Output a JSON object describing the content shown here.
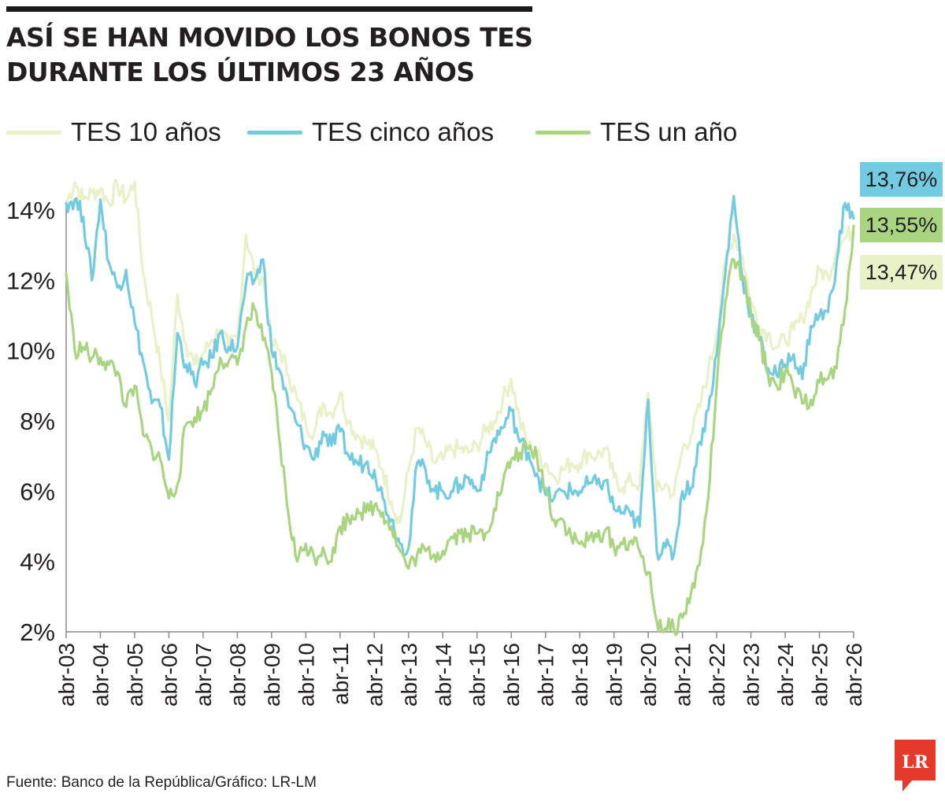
{
  "header": {
    "title_line1": "ASÍ SE HAN MOVIDO LOS BONOS TES",
    "title_line2": "DURANTE LOS ÚLTIMOS 23 AÑOS"
  },
  "colors": {
    "tes10": "#e8f1c8",
    "tes5": "#72cbe0",
    "tes1": "#a9d580",
    "axis": "#8a8a8a",
    "text": "#231f20",
    "logo": "#e53a2b"
  },
  "badges": {
    "tes5": "13,76%",
    "tes1": "13,55%",
    "tes10": "13,47%"
  },
  "footer": {
    "source": "Fuente: Banco de la República/Gráfico: LR-LM",
    "logo_text": "LR"
  },
  "chart_data": {
    "type": "line",
    "title": "ASÍ SE HAN MOVIDO LOS BONOS TES DURANTE LOS ÚLTIMOS 23 AÑOS",
    "xlabel": "",
    "ylabel": "",
    "xlim": [
      2003.25,
      2026.25
    ],
    "ylim": [
      2,
      15.5
    ],
    "y_ticks": [
      2,
      4,
      6,
      8,
      10,
      12,
      14
    ],
    "y_tick_labels": [
      "2%",
      "4%",
      "6%",
      "8%",
      "10%",
      "12%",
      "14%"
    ],
    "x_ticks": [
      2003.25,
      2004.25,
      2005.25,
      2006.25,
      2007.25,
      2008.25,
      2009.25,
      2010.25,
      2011.25,
      2012.25,
      2013.25,
      2014.25,
      2015.25,
      2016.25,
      2017.25,
      2018.25,
      2019.25,
      2020.25,
      2021.25,
      2022.25,
      2023.25,
      2024.25,
      2025.25,
      2026.25
    ],
    "x_tick_labels": [
      "abr-03",
      "abr-04",
      "abr-05",
      "abr-06",
      "abr-07",
      "abr-08",
      "abr-09",
      "abr-10",
      "abr-11",
      "abr-12",
      "abr-13",
      "abr-14",
      "abr-15",
      "abr-16",
      "abr-17",
      "abr-18",
      "abr-19",
      "abr-20",
      "abr-21",
      "abr-22",
      "abr-23",
      "abr-24",
      "abr-25",
      "abr-26"
    ],
    "grid": false,
    "legend_position": "top",
    "series": [
      {
        "key": "tes10",
        "name": "TES 10 años",
        "points": [
          [
            2003.25,
            14.2
          ],
          [
            2003.5,
            14.8
          ],
          [
            2003.75,
            14.3
          ],
          [
            2004.0,
            14.5
          ],
          [
            2004.25,
            14.6
          ],
          [
            2004.5,
            14.2
          ],
          [
            2004.75,
            14.7
          ],
          [
            2005.0,
            14.3
          ],
          [
            2005.25,
            14.8
          ],
          [
            2005.5,
            12.2
          ],
          [
            2005.75,
            11.0
          ],
          [
            2006.0,
            9.6
          ],
          [
            2006.25,
            8.0
          ],
          [
            2006.5,
            11.6
          ],
          [
            2006.75,
            10.2
          ],
          [
            2007.0,
            9.6
          ],
          [
            2007.25,
            9.9
          ],
          [
            2007.5,
            10.3
          ],
          [
            2007.75,
            10.6
          ],
          [
            2008.0,
            10.1
          ],
          [
            2008.25,
            10.4
          ],
          [
            2008.5,
            13.3
          ],
          [
            2008.75,
            12.2
          ],
          [
            2009.0,
            12.1
          ],
          [
            2009.25,
            10.2
          ],
          [
            2009.5,
            10.0
          ],
          [
            2009.75,
            9.3
          ],
          [
            2010.0,
            8.6
          ],
          [
            2010.25,
            7.9
          ],
          [
            2010.5,
            7.7
          ],
          [
            2010.75,
            8.5
          ],
          [
            2011.0,
            8.2
          ],
          [
            2011.25,
            8.8
          ],
          [
            2011.5,
            8.0
          ],
          [
            2011.75,
            7.6
          ],
          [
            2012.0,
            7.4
          ],
          [
            2012.25,
            7.2
          ],
          [
            2012.5,
            6.6
          ],
          [
            2012.75,
            5.7
          ],
          [
            2013.0,
            5.1
          ],
          [
            2013.25,
            6.6
          ],
          [
            2013.5,
            7.8
          ],
          [
            2013.75,
            7.4
          ],
          [
            2014.0,
            6.8
          ],
          [
            2014.25,
            6.9
          ],
          [
            2014.5,
            7.2
          ],
          [
            2014.75,
            7.2
          ],
          [
            2015.0,
            7.1
          ],
          [
            2015.25,
            7.3
          ],
          [
            2015.5,
            7.7
          ],
          [
            2015.75,
            8.0
          ],
          [
            2016.0,
            8.6
          ],
          [
            2016.25,
            9.2
          ],
          [
            2016.5,
            8.0
          ],
          [
            2016.75,
            7.3
          ],
          [
            2017.0,
            7.0
          ],
          [
            2017.25,
            6.8
          ],
          [
            2017.5,
            6.4
          ],
          [
            2017.75,
            6.6
          ],
          [
            2018.0,
            6.8
          ],
          [
            2018.25,
            6.8
          ],
          [
            2018.5,
            7.1
          ],
          [
            2018.75,
            7.0
          ],
          [
            2019.0,
            7.2
          ],
          [
            2019.25,
            6.4
          ],
          [
            2019.5,
            6.1
          ],
          [
            2019.75,
            6.3
          ],
          [
            2020.0,
            6.2
          ],
          [
            2020.25,
            8.8
          ],
          [
            2020.5,
            6.0
          ],
          [
            2020.75,
            6.2
          ],
          [
            2021.0,
            5.9
          ],
          [
            2021.25,
            7.2
          ],
          [
            2021.5,
            7.6
          ],
          [
            2021.75,
            8.4
          ],
          [
            2022.0,
            9.4
          ],
          [
            2022.25,
            10.5
          ],
          [
            2022.5,
            12.5
          ],
          [
            2022.75,
            13.3
          ],
          [
            2023.0,
            12.7
          ],
          [
            2023.25,
            11.4
          ],
          [
            2023.5,
            10.7
          ],
          [
            2023.75,
            10.5
          ],
          [
            2024.0,
            10.1
          ],
          [
            2024.25,
            10.3
          ],
          [
            2024.5,
            10.6
          ],
          [
            2024.75,
            10.9
          ],
          [
            2025.0,
            11.6
          ],
          [
            2025.25,
            12.3
          ],
          [
            2025.5,
            12.1
          ],
          [
            2025.75,
            12.9
          ],
          [
            2026.0,
            13.2
          ],
          [
            2026.25,
            13.47
          ]
        ]
      },
      {
        "key": "tes5",
        "name": "TES cinco años",
        "points": [
          [
            2003.25,
            14.2
          ],
          [
            2003.5,
            14.3
          ],
          [
            2003.75,
            13.8
          ],
          [
            2004.0,
            12.0
          ],
          [
            2004.25,
            14.3
          ],
          [
            2004.5,
            12.5
          ],
          [
            2004.75,
            11.8
          ],
          [
            2005.0,
            12.3
          ],
          [
            2005.25,
            10.8
          ],
          [
            2005.5,
            9.7
          ],
          [
            2005.75,
            8.5
          ],
          [
            2006.0,
            8.4
          ],
          [
            2006.25,
            6.9
          ],
          [
            2006.5,
            10.5
          ],
          [
            2006.75,
            9.6
          ],
          [
            2007.0,
            9.1
          ],
          [
            2007.25,
            9.6
          ],
          [
            2007.5,
            9.8
          ],
          [
            2007.75,
            10.5
          ],
          [
            2008.0,
            10.1
          ],
          [
            2008.25,
            10.1
          ],
          [
            2008.5,
            11.9
          ],
          [
            2008.75,
            12.0
          ],
          [
            2009.0,
            12.6
          ],
          [
            2009.25,
            10.0
          ],
          [
            2009.5,
            9.4
          ],
          [
            2009.75,
            8.4
          ],
          [
            2010.0,
            7.9
          ],
          [
            2010.25,
            7.3
          ],
          [
            2010.5,
            6.9
          ],
          [
            2010.75,
            7.7
          ],
          [
            2011.0,
            7.3
          ],
          [
            2011.25,
            7.7
          ],
          [
            2011.5,
            7.0
          ],
          [
            2011.75,
            6.8
          ],
          [
            2012.0,
            6.8
          ],
          [
            2012.25,
            6.6
          ],
          [
            2012.5,
            5.8
          ],
          [
            2012.75,
            5.2
          ],
          [
            2013.0,
            4.5
          ],
          [
            2013.25,
            4.4
          ],
          [
            2013.5,
            6.8
          ],
          [
            2013.75,
            6.6
          ],
          [
            2014.0,
            6.0
          ],
          [
            2014.25,
            6.0
          ],
          [
            2014.5,
            6.0
          ],
          [
            2014.75,
            6.2
          ],
          [
            2015.0,
            6.4
          ],
          [
            2015.25,
            6.0
          ],
          [
            2015.5,
            6.7
          ],
          [
            2015.75,
            7.5
          ],
          [
            2016.0,
            7.8
          ],
          [
            2016.25,
            8.3
          ],
          [
            2016.5,
            7.4
          ],
          [
            2016.75,
            7.1
          ],
          [
            2017.0,
            6.5
          ],
          [
            2017.25,
            5.9
          ],
          [
            2017.5,
            5.8
          ],
          [
            2017.75,
            6.0
          ],
          [
            2018.0,
            6.0
          ],
          [
            2018.25,
            6.0
          ],
          [
            2018.5,
            6.2
          ],
          [
            2018.75,
            6.2
          ],
          [
            2019.0,
            6.3
          ],
          [
            2019.25,
            5.5
          ],
          [
            2019.5,
            5.4
          ],
          [
            2019.75,
            5.3
          ],
          [
            2020.0,
            5.0
          ],
          [
            2020.25,
            8.6
          ],
          [
            2020.5,
            4.3
          ],
          [
            2020.75,
            4.4
          ],
          [
            2021.0,
            4.2
          ],
          [
            2021.25,
            6.0
          ],
          [
            2021.5,
            6.1
          ],
          [
            2021.75,
            7.4
          ],
          [
            2022.0,
            8.3
          ],
          [
            2022.25,
            9.9
          ],
          [
            2022.5,
            12.2
          ],
          [
            2022.75,
            14.4
          ],
          [
            2023.0,
            12.1
          ],
          [
            2023.25,
            11.0
          ],
          [
            2023.5,
            10.3
          ],
          [
            2023.75,
            9.5
          ],
          [
            2024.0,
            9.3
          ],
          [
            2024.25,
            9.6
          ],
          [
            2024.5,
            9.9
          ],
          [
            2024.75,
            9.2
          ],
          [
            2025.0,
            10.7
          ],
          [
            2025.25,
            11.0
          ],
          [
            2025.5,
            11.1
          ],
          [
            2025.75,
            12.5
          ],
          [
            2026.0,
            14.2
          ],
          [
            2026.25,
            13.76
          ]
        ]
      },
      {
        "key": "tes1",
        "name": "TES un año",
        "points": [
          [
            2003.25,
            12.2
          ],
          [
            2003.5,
            10.0
          ],
          [
            2003.75,
            10.1
          ],
          [
            2004.0,
            9.8
          ],
          [
            2004.25,
            9.8
          ],
          [
            2004.5,
            9.6
          ],
          [
            2004.75,
            9.4
          ],
          [
            2005.0,
            8.4
          ],
          [
            2005.25,
            9.0
          ],
          [
            2005.5,
            7.6
          ],
          [
            2005.75,
            7.2
          ],
          [
            2006.0,
            6.9
          ],
          [
            2006.25,
            5.8
          ],
          [
            2006.5,
            6.2
          ],
          [
            2006.75,
            7.9
          ],
          [
            2007.0,
            8.1
          ],
          [
            2007.25,
            8.3
          ],
          [
            2007.5,
            8.9
          ],
          [
            2007.75,
            9.8
          ],
          [
            2008.0,
            9.7
          ],
          [
            2008.25,
            9.6
          ],
          [
            2008.5,
            10.7
          ],
          [
            2008.75,
            11.2
          ],
          [
            2009.0,
            10.3
          ],
          [
            2009.25,
            9.4
          ],
          [
            2009.5,
            7.3
          ],
          [
            2009.75,
            5.3
          ],
          [
            2010.0,
            4.0
          ],
          [
            2010.25,
            4.5
          ],
          [
            2010.5,
            4.1
          ],
          [
            2010.75,
            4.4
          ],
          [
            2011.0,
            4.0
          ],
          [
            2011.25,
            5.0
          ],
          [
            2011.5,
            5.2
          ],
          [
            2011.75,
            5.5
          ],
          [
            2012.0,
            5.4
          ],
          [
            2012.25,
            5.6
          ],
          [
            2012.5,
            5.4
          ],
          [
            2012.75,
            5.0
          ],
          [
            2013.0,
            4.3
          ],
          [
            2013.25,
            3.8
          ],
          [
            2013.5,
            4.2
          ],
          [
            2013.75,
            4.3
          ],
          [
            2014.0,
            4.2
          ],
          [
            2014.25,
            4.3
          ],
          [
            2014.5,
            4.7
          ],
          [
            2014.75,
            4.8
          ],
          [
            2015.0,
            4.8
          ],
          [
            2015.25,
            4.8
          ],
          [
            2015.5,
            4.8
          ],
          [
            2015.75,
            5.5
          ],
          [
            2016.0,
            6.2
          ],
          [
            2016.25,
            6.9
          ],
          [
            2016.5,
            7.1
          ],
          [
            2016.75,
            7.2
          ],
          [
            2017.0,
            7.0
          ],
          [
            2017.25,
            6.1
          ],
          [
            2017.5,
            5.2
          ],
          [
            2017.75,
            5.2
          ],
          [
            2018.0,
            4.7
          ],
          [
            2018.25,
            4.5
          ],
          [
            2018.5,
            4.6
          ],
          [
            2018.75,
            4.7
          ],
          [
            2019.0,
            4.9
          ],
          [
            2019.25,
            4.4
          ],
          [
            2019.5,
            4.5
          ],
          [
            2019.75,
            4.6
          ],
          [
            2020.0,
            4.3
          ],
          [
            2020.25,
            3.7
          ],
          [
            2020.5,
            2.3
          ],
          [
            2020.75,
            2.1
          ],
          [
            2021.0,
            2.1
          ],
          [
            2021.25,
            2.4
          ],
          [
            2021.5,
            3.1
          ],
          [
            2021.75,
            3.9
          ],
          [
            2022.0,
            5.8
          ],
          [
            2022.25,
            9.0
          ],
          [
            2022.5,
            11.4
          ],
          [
            2022.75,
            12.6
          ],
          [
            2023.0,
            12.1
          ],
          [
            2023.25,
            11.1
          ],
          [
            2023.5,
            10.3
          ],
          [
            2023.75,
            9.3
          ],
          [
            2024.0,
            9.0
          ],
          [
            2024.25,
            9.4
          ],
          [
            2024.5,
            8.9
          ],
          [
            2024.75,
            8.5
          ],
          [
            2025.0,
            8.6
          ],
          [
            2025.25,
            9.1
          ],
          [
            2025.5,
            9.2
          ],
          [
            2025.75,
            9.5
          ],
          [
            2026.0,
            11.2
          ],
          [
            2026.25,
            13.55
          ]
        ]
      }
    ]
  }
}
